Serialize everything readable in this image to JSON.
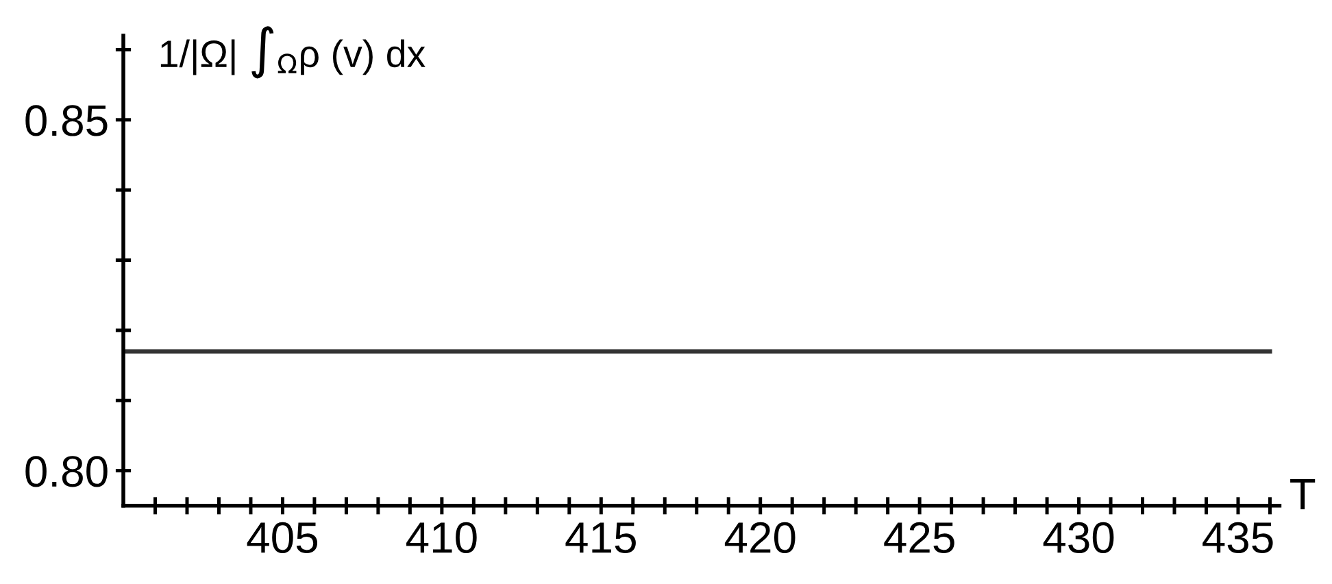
{
  "chart_data": {
    "type": "line",
    "xlabel": "T",
    "ylabel": "1/|Ω| ∫$_{Ω}$ρ (v) dx",
    "x": [
      400,
      436
    ],
    "series": [
      {
        "color": "#333333",
        "values": [
          0.817,
          0.817
        ]
      }
    ],
    "xlim": [
      400,
      436.3
    ],
    "ylim": [
      0.795,
      0.862
    ],
    "xticks": [
      {
        "value": 401,
        "label": null
      },
      {
        "value": 402,
        "label": null
      },
      {
        "value": 403,
        "label": null
      },
      {
        "value": 404,
        "label": null
      },
      405,
      {
        "value": 406,
        "label": null
      },
      {
        "value": 407,
        "label": null
      },
      {
        "value": 408,
        "label": null
      },
      {
        "value": 409,
        "label": null
      },
      410,
      {
        "value": 411,
        "label": null
      },
      {
        "value": 412,
        "label": null
      },
      {
        "value": 413,
        "label": null
      },
      {
        "value": 414,
        "label": null
      },
      415,
      {
        "value": 416,
        "label": null
      },
      {
        "value": 417,
        "label": null
      },
      {
        "value": 418,
        "label": null
      },
      {
        "value": 419,
        "label": null
      },
      420,
      {
        "value": 421,
        "label": null
      },
      {
        "value": 422,
        "label": null
      },
      {
        "value": 423,
        "label": null
      },
      {
        "value": 424,
        "label": null
      },
      425,
      {
        "value": 426,
        "label": null
      },
      {
        "value": 427,
        "label": null
      },
      {
        "value": 428,
        "label": null
      },
      {
        "value": 429,
        "label": null
      },
      430,
      {
        "value": 431,
        "label": null
      },
      {
        "value": 432,
        "label": null
      },
      {
        "value": 433,
        "label": null
      },
      {
        "value": 434,
        "label": null
      },
      435,
      {
        "value": 436,
        "label": null
      }
    ],
    "yticks": [
      {
        "value": 0.8,
        "label": "0.80"
      },
      {
        "value": 0.81,
        "label": null
      },
      {
        "value": 0.82,
        "label": null
      },
      {
        "value": 0.83,
        "label": null
      },
      {
        "value": 0.84,
        "label": null
      },
      0.85,
      {
        "value": 0.86,
        "label": null
      }
    ],
    "grid": false,
    "legend": false,
    "marker": "none",
    "line_style": "solid"
  }
}
